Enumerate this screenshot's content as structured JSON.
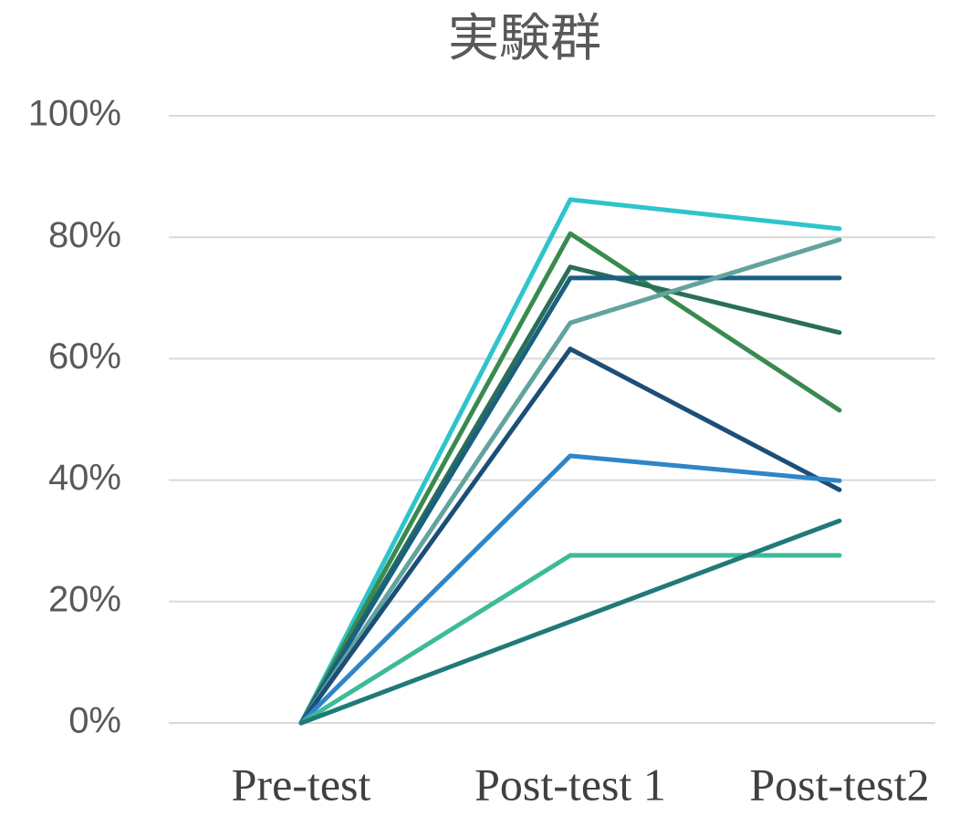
{
  "chart_data": {
    "type": "line",
    "title": "実験群",
    "categories": [
      "Pre-test",
      "Post-test 1",
      "Post-test2"
    ],
    "series": [
      {
        "color": "#2ec4cc",
        "values": [
          0,
          86.2,
          81.4
        ]
      },
      {
        "color": "#3a8a50",
        "values": [
          0,
          80.6,
          51.5
        ]
      },
      {
        "color": "#2a6e5a",
        "values": [
          0,
          75.1,
          64.3
        ]
      },
      {
        "color": "#1a6080",
        "values": [
          0,
          73.3,
          73.3
        ]
      },
      {
        "color": "#62a39e",
        "values": [
          0,
          65.9,
          79.6
        ]
      },
      {
        "color": "#1d4e78",
        "values": [
          0,
          61.6,
          38.4
        ]
      },
      {
        "color": "#2e86c8",
        "values": [
          0,
          44,
          39.9
        ]
      },
      {
        "color": "#3dbb98",
        "values": [
          0,
          27.6,
          27.6
        ]
      },
      {
        "color": "#1f7a78",
        "values": [
          0,
          16.7,
          33.3
        ]
      }
    ],
    "ylim": [
      0,
      100
    ],
    "yticks": [
      {
        "value": 0,
        "label": "0%"
      },
      {
        "value": 20,
        "label": "20%"
      },
      {
        "value": 40,
        "label": "40%"
      },
      {
        "value": 60,
        "label": "60%"
      },
      {
        "value": 80,
        "label": "80%"
      },
      {
        "value": 100,
        "label": "100%"
      }
    ],
    "grid": true
  }
}
